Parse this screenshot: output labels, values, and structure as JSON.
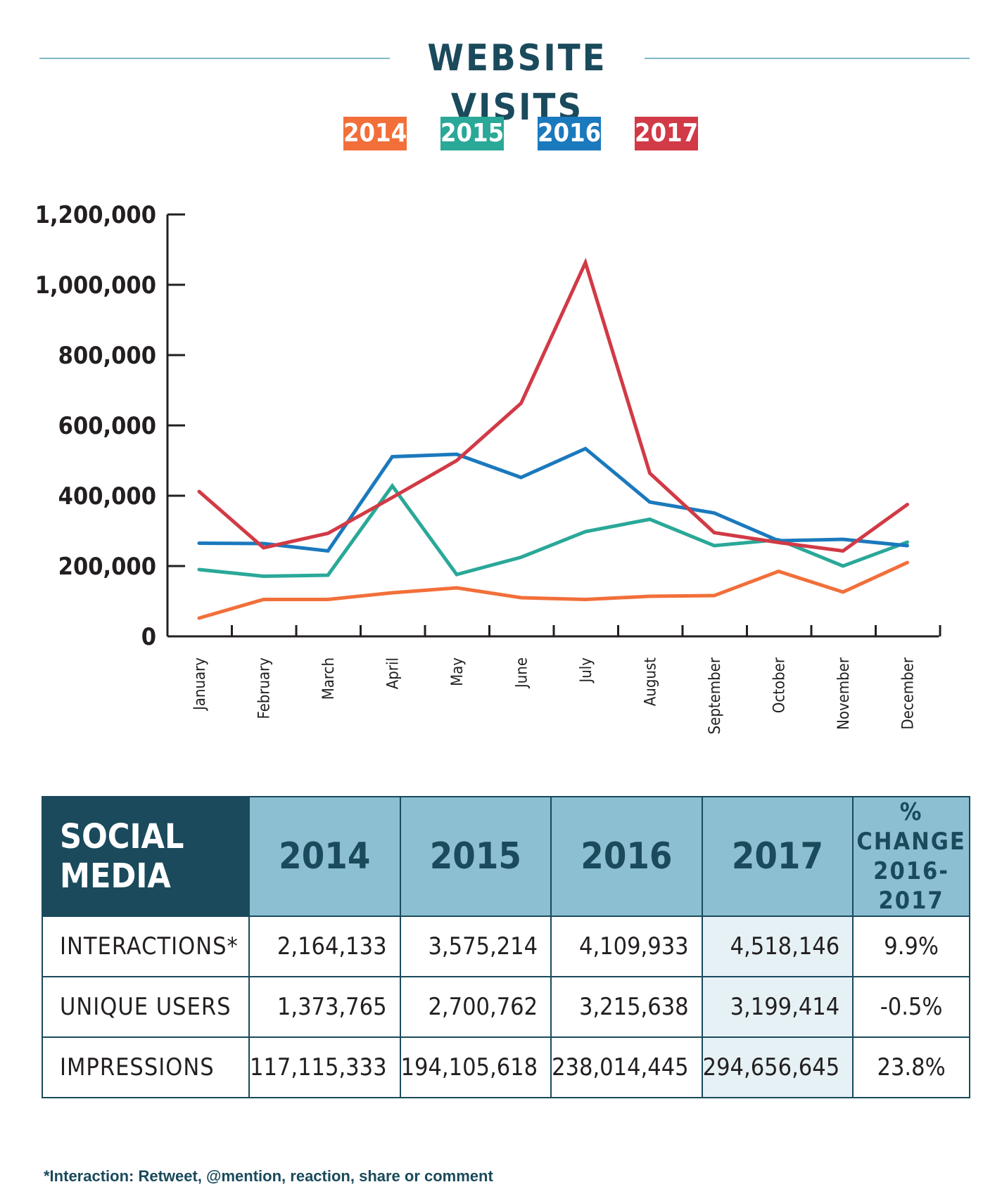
{
  "title": "WEBSITE VISITS",
  "colors": {
    "2014": "#f26f3a",
    "2015": "#2aa898",
    "2016": "#1b79bd",
    "2017": "#d13a46",
    "header_dark": "#1a4a5c",
    "header_light": "#8bbfd1"
  },
  "legend": [
    "2014",
    "2015",
    "2016",
    "2017"
  ],
  "chart_data": {
    "type": "line",
    "title": "WEBSITE VISITS",
    "categories": [
      "January",
      "February",
      "March",
      "April",
      "May",
      "June",
      "July",
      "August",
      "September",
      "October",
      "November",
      "December"
    ],
    "ylim": [
      0,
      1200000
    ],
    "yticks": [
      0,
      200000,
      400000,
      600000,
      800000,
      1000000,
      1200000
    ],
    "ytick_labels": [
      "0",
      "200,000",
      "400,000",
      "600,000",
      "800,000",
      "1,000,000",
      "1,200,000"
    ],
    "grid": false,
    "legend_position": "top-center",
    "series": [
      {
        "name": "2014",
        "color": "#f26f3a",
        "values": [
          52000,
          105000,
          105000,
          124000,
          138000,
          110000,
          105000,
          114000,
          116000,
          185000,
          126000,
          210000
        ]
      },
      {
        "name": "2015",
        "color": "#2aa898",
        "values": [
          190000,
          171000,
          174000,
          428000,
          176000,
          225000,
          298000,
          333000,
          258000,
          275000,
          200000,
          268000
        ]
      },
      {
        "name": "2016",
        "color": "#1b79bd",
        "values": [
          265000,
          264000,
          243000,
          511000,
          518000,
          452000,
          534000,
          382000,
          351000,
          272000,
          276000,
          258000
        ]
      },
      {
        "name": "2017",
        "color": "#d13a46",
        "values": [
          412000,
          252000,
          293000,
          395000,
          500000,
          663000,
          1063000,
          464000,
          295000,
          267000,
          243000,
          375000
        ]
      }
    ]
  },
  "table": {
    "corner": "SOCIAL MEDIA",
    "headers": [
      "2014",
      "2015",
      "2016",
      "2017"
    ],
    "change_header_1": "% CHANGE",
    "change_header_2": "2016-2017",
    "rows": [
      {
        "label": "INTERACTIONS*",
        "values": [
          "2,164,133",
          "3,575,214",
          "4,109,933",
          "4,518,146"
        ],
        "change": "9.9%"
      },
      {
        "label": "UNIQUE USERS",
        "values": [
          "1,373,765",
          "2,700,762",
          "3,215,638",
          "3,199,414"
        ],
        "change": "-0.5%"
      },
      {
        "label": "IMPRESSIONS",
        "values": [
          "117,115,333",
          "194,105,618",
          "238,014,445",
          "294,656,645"
        ],
        "change": "23.8%"
      }
    ]
  },
  "footnote": "*Interaction: Retweet, @mention, reaction, share or comment"
}
